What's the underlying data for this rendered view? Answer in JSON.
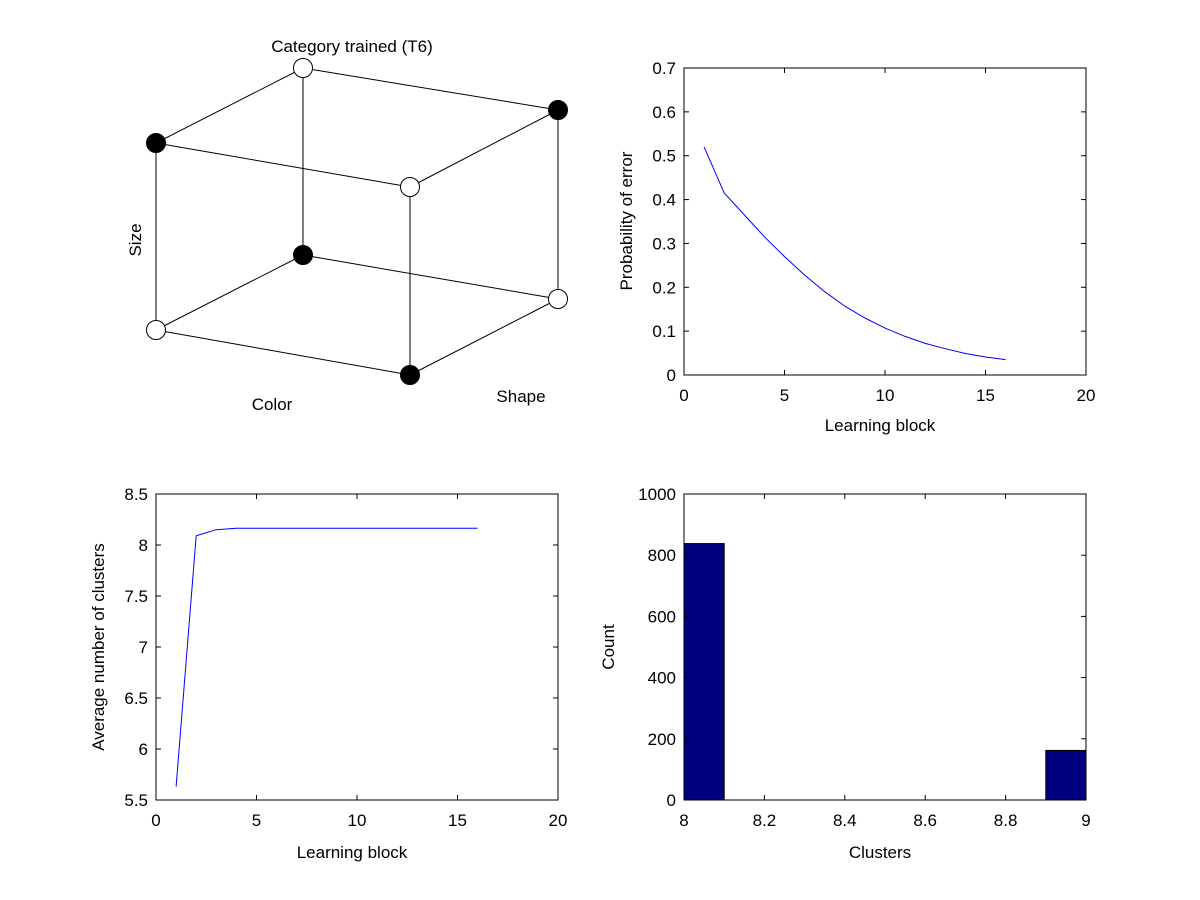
{
  "cube": {
    "title": "Category trained (T6)",
    "axis_labels": {
      "size": "Size",
      "color": "Color",
      "shape": "Shape"
    },
    "vertices": [
      {
        "id": "top-back-left",
        "filled": false
      },
      {
        "id": "top-back-right",
        "filled": true
      },
      {
        "id": "top-front-left",
        "filled": true
      },
      {
        "id": "top-front-right",
        "filled": false
      },
      {
        "id": "bottom-back-left",
        "filled": true
      },
      {
        "id": "bottom-back-right",
        "filled": false
      },
      {
        "id": "bottom-front-left",
        "filled": false
      },
      {
        "id": "bottom-front-right",
        "filled": true
      }
    ]
  },
  "chart_data": [
    {
      "type": "line",
      "title": "",
      "xlabel": "Learning block",
      "ylabel": "Probability of error",
      "xlim": [
        0,
        20
      ],
      "ylim": [
        0,
        0.7
      ],
      "xticks": [
        "0",
        "5",
        "10",
        "15",
        "20"
      ],
      "yticks": [
        "0",
        "0.1",
        "0.2",
        "0.3",
        "0.4",
        "0.5",
        "0.6",
        "0.7"
      ],
      "series": [
        {
          "color": "#0000ff",
          "x": [
            1,
            2,
            3,
            4,
            5,
            6,
            7,
            8,
            9,
            10,
            11,
            12,
            13,
            14,
            15,
            16
          ],
          "values": [
            0.52,
            0.415,
            0.365,
            0.315,
            0.27,
            0.228,
            0.19,
            0.157,
            0.13,
            0.107,
            0.088,
            0.072,
            0.06,
            0.049,
            0.041,
            0.035
          ]
        }
      ]
    },
    {
      "type": "line",
      "title": "",
      "xlabel": "Learning block",
      "ylabel": "Average number of clusters",
      "xlim": [
        0,
        20
      ],
      "ylim": [
        5.5,
        8.5
      ],
      "xticks": [
        "0",
        "5",
        "10",
        "15",
        "20"
      ],
      "yticks": [
        "5.5",
        "6",
        "6.5",
        "7",
        "7.5",
        "8",
        "8.5"
      ],
      "series": [
        {
          "color": "#0000ff",
          "x": [
            1,
            2,
            3,
            4,
            5,
            6,
            7,
            8,
            9,
            10,
            11,
            12,
            13,
            14,
            15,
            16
          ],
          "values": [
            5.63,
            8.09,
            8.15,
            8.165,
            8.165,
            8.165,
            8.165,
            8.165,
            8.165,
            8.165,
            8.165,
            8.165,
            8.165,
            8.165,
            8.165,
            8.165
          ]
        }
      ]
    },
    {
      "type": "bar",
      "title": "",
      "xlabel": "Clusters",
      "ylabel": "Count",
      "xlim": [
        8,
        9
      ],
      "ylim": [
        0,
        1000
      ],
      "xticks": [
        "8",
        "8.2",
        "8.4",
        "8.6",
        "8.8",
        "9"
      ],
      "yticks": [
        "0",
        "200",
        "400",
        "600",
        "800",
        "1000"
      ],
      "bar_color": "#000080",
      "bars": [
        {
          "from": 8.0,
          "to": 8.1,
          "value": 838
        },
        {
          "from": 8.9,
          "to": 9.0,
          "value": 162
        }
      ]
    }
  ]
}
